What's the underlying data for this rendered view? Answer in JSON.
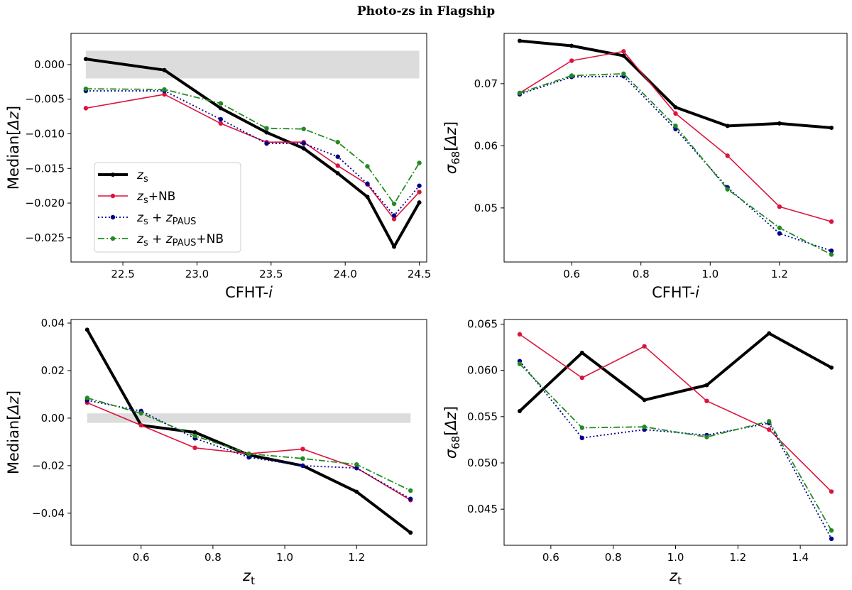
{
  "title": "Photo-zs in Flagship",
  "colors": {
    "zs": "#000000",
    "zs_nb": "#dc143c",
    "zs_zpaus": "#00008b",
    "zs_zpaus_nb": "#228b22",
    "band": "#dcdcdc"
  },
  "legend": [
    "zs",
    "zs+NB",
    "zs + zPAUS",
    "zs + zPAUS+NB"
  ],
  "chart_data": [
    {
      "id": "top-left",
      "type": "line",
      "xlabel": "CFHT-i",
      "ylabel": "Median[Δz]",
      "xlim": [
        22.15,
        24.55
      ],
      "ylim": [
        -0.0285,
        0.0045
      ],
      "xticks": [
        22.5,
        23.0,
        23.5,
        24.0,
        24.5
      ],
      "yticks": [
        0.0,
        -0.005,
        -0.01,
        -0.015,
        -0.02,
        -0.025
      ],
      "xtick_labels": [
        "22.5",
        "23.0",
        "23.5",
        "24.0",
        "24.5"
      ],
      "ytick_labels": [
        "0.000",
        "−0.005",
        "−0.010",
        "−0.015",
        "−0.020",
        "−0.025"
      ],
      "band": {
        "x": [
          22.25,
          24.5
        ],
        "y": [
          -0.002,
          0.002
        ]
      },
      "legend_loc": "center-left",
      "x": [
        22.25,
        22.78,
        23.16,
        23.47,
        23.72,
        23.95,
        24.15,
        24.33,
        24.5
      ],
      "series": [
        {
          "name": "zs",
          "values": [
            0.0008,
            -0.0008,
            -0.0063,
            -0.0098,
            -0.0121,
            -0.0157,
            -0.0191,
            -0.0263,
            -0.0199
          ]
        },
        {
          "name": "zs+NB",
          "values": [
            -0.0063,
            -0.0043,
            -0.0085,
            -0.0112,
            -0.0112,
            -0.0146,
            -0.0173,
            -0.0223,
            -0.0184
          ]
        },
        {
          "name": "zs + zPAUS",
          "values": [
            -0.0038,
            -0.0038,
            -0.0079,
            -0.0114,
            -0.0114,
            -0.0133,
            -0.0172,
            -0.0218,
            -0.0175
          ]
        },
        {
          "name": "zs + zPAUS+NB",
          "values": [
            -0.0035,
            -0.0036,
            -0.0056,
            -0.0092,
            -0.0093,
            -0.0112,
            -0.0147,
            -0.0201,
            -0.0142
          ]
        }
      ]
    },
    {
      "id": "top-right",
      "type": "line",
      "xlabel": "CFHT-i",
      "ylabel": "σ68[Δz]",
      "xlim": [
        0.405,
        1.395
      ],
      "ylim": [
        0.0413,
        0.0781
      ],
      "xticks": [
        0.6,
        0.8,
        1.0,
        1.2
      ],
      "yticks": [
        0.07,
        0.06,
        0.05
      ],
      "xtick_labels": [
        "0.6",
        "0.8",
        "1.0",
        "1.2"
      ],
      "ytick_labels": [
        "0.07",
        "0.06",
        "0.05"
      ],
      "x": [
        0.45,
        0.6,
        0.75,
        0.9,
        1.05,
        1.2,
        1.35
      ],
      "series": [
        {
          "name": "zs",
          "values": [
            0.0769,
            0.0761,
            0.0745,
            0.0662,
            0.0632,
            0.0636,
            0.0629
          ]
        },
        {
          "name": "zs+NB",
          "values": [
            0.0685,
            0.0737,
            0.0752,
            0.0652,
            0.0584,
            0.0502,
            0.0478
          ]
        },
        {
          "name": "zs + zPAUS",
          "values": [
            0.0683,
            0.0711,
            0.0712,
            0.0627,
            0.0533,
            0.0459,
            0.0431
          ]
        },
        {
          "name": "zs + zPAUS+NB",
          "values": [
            0.0685,
            0.0713,
            0.0716,
            0.0632,
            0.053,
            0.0468,
            0.0425
          ]
        }
      ]
    },
    {
      "id": "bottom-left",
      "type": "line",
      "xlabel": "zt",
      "ylabel": "Median[Δz]",
      "xlim": [
        0.405,
        1.395
      ],
      "ylim": [
        -0.0535,
        0.0415
      ],
      "xticks": [
        0.6,
        0.8,
        1.0,
        1.2
      ],
      "yticks": [
        0.04,
        0.02,
        0.0,
        -0.02,
        -0.04
      ],
      "xtick_labels": [
        "0.6",
        "0.8",
        "1.0",
        "1.2"
      ],
      "ytick_labels": [
        "0.04",
        "0.02",
        "0.00",
        "−0.02",
        "−0.04"
      ],
      "band": {
        "x": [
          0.45,
          1.35
        ],
        "y": [
          -0.002,
          0.002
        ]
      },
      "x": [
        0.45,
        0.6,
        0.75,
        0.9,
        1.05,
        1.2,
        1.35
      ],
      "series": [
        {
          "name": "zs",
          "values": [
            0.0372,
            -0.003,
            -0.006,
            -0.0155,
            -0.02,
            -0.031,
            -0.0482
          ]
        },
        {
          "name": "zs+NB",
          "values": [
            0.0065,
            -0.003,
            -0.0125,
            -0.015,
            -0.013,
            -0.021,
            -0.0345
          ]
        },
        {
          "name": "zs + zPAUS",
          "values": [
            0.0075,
            0.003,
            -0.0085,
            -0.0165,
            -0.02,
            -0.021,
            -0.034
          ]
        },
        {
          "name": "zs + zPAUS+NB",
          "values": [
            0.0085,
            0.002,
            -0.0075,
            -0.015,
            -0.017,
            -0.0195,
            -0.0305
          ]
        }
      ]
    },
    {
      "id": "bottom-right",
      "type": "line",
      "xlabel": "zt",
      "ylabel": "σ68[Δz]",
      "xlim": [
        0.45,
        1.55
      ],
      "ylim": [
        0.0411,
        0.0655
      ],
      "xticks": [
        0.6,
        0.8,
        1.0,
        1.2,
        1.4
      ],
      "yticks": [
        0.065,
        0.06,
        0.055,
        0.05,
        0.045
      ],
      "xtick_labels": [
        "0.6",
        "0.8",
        "1.0",
        "1.2",
        "1.4"
      ],
      "ytick_labels": [
        "0.065",
        "0.060",
        "0.055",
        "0.050",
        "0.045"
      ],
      "x": [
        0.5,
        0.7,
        0.9,
        1.1,
        1.3,
        1.5
      ],
      "series": [
        {
          "name": "zs",
          "values": [
            0.0556,
            0.0619,
            0.0568,
            0.0584,
            0.064,
            0.0603
          ]
        },
        {
          "name": "zs+NB",
          "values": [
            0.0639,
            0.0592,
            0.0626,
            0.0567,
            0.0536,
            0.0469
          ]
        },
        {
          "name": "zs + zPAUS",
          "values": [
            0.061,
            0.0527,
            0.0536,
            0.053,
            0.0543,
            0.0418
          ]
        },
        {
          "name": "zs + zPAUS+NB",
          "values": [
            0.0607,
            0.0538,
            0.0539,
            0.0528,
            0.0545,
            0.0427
          ]
        }
      ]
    }
  ]
}
